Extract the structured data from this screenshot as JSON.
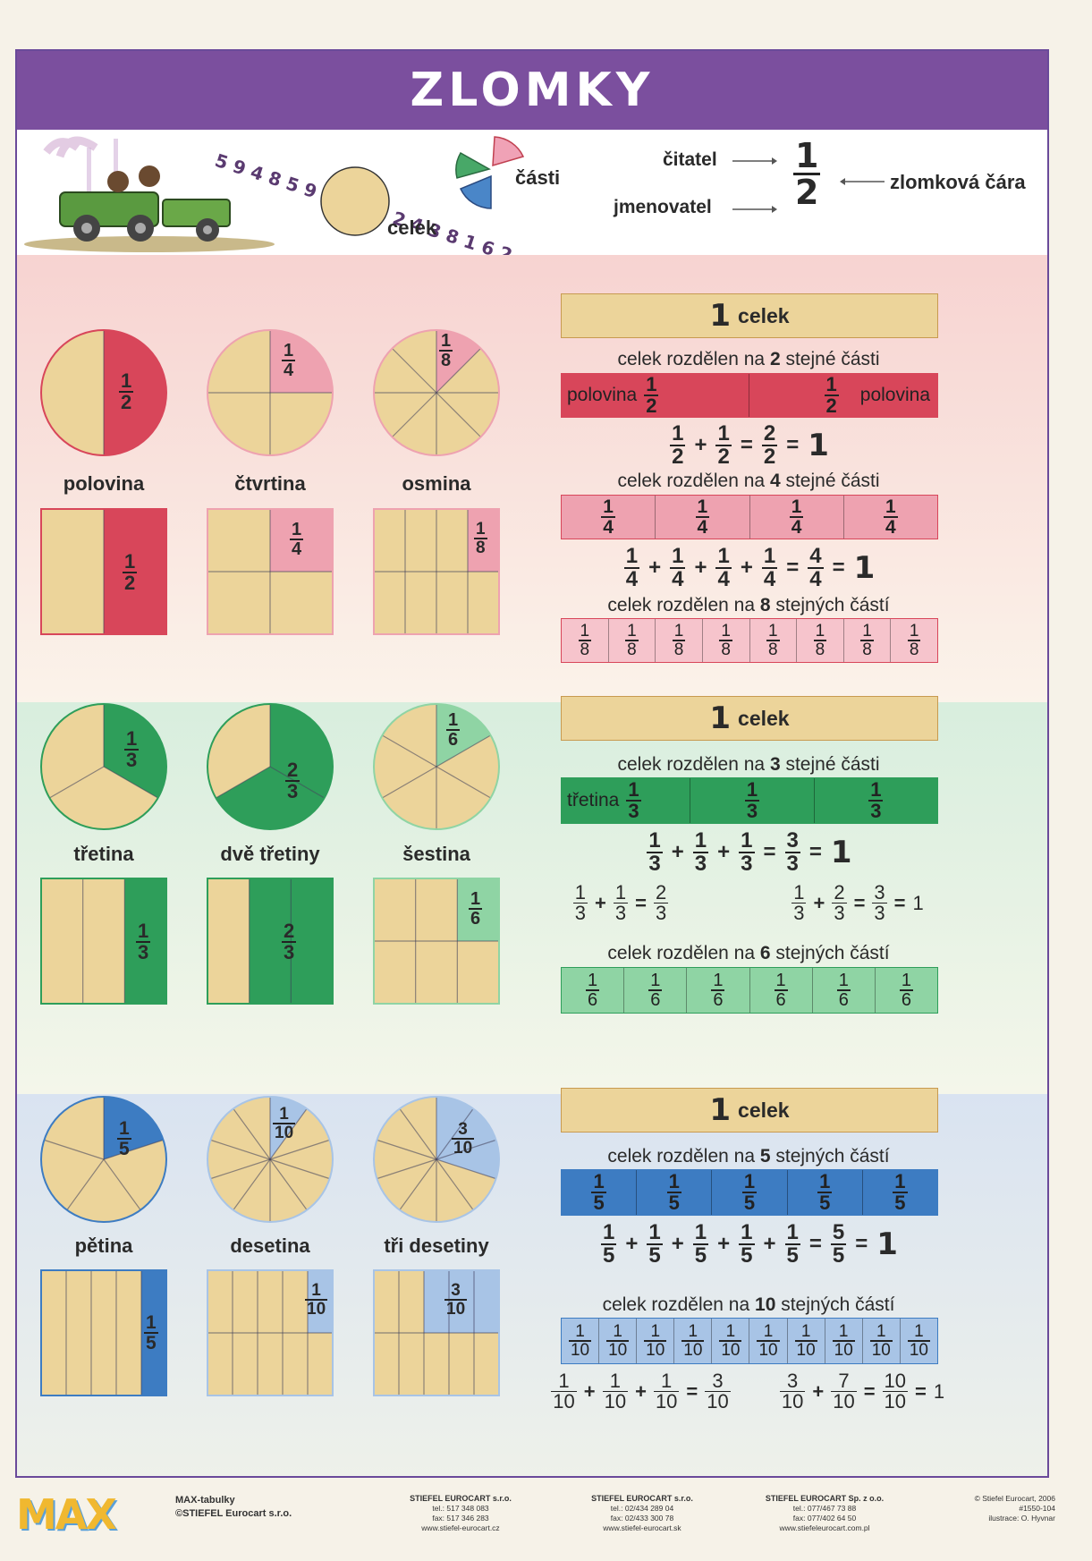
{
  "title": "ZLOMKY",
  "intro": {
    "whole_label": "celek",
    "parts_label": "části",
    "numerator_label": "čitatel",
    "denominator_label": "jmenovatel",
    "fraction_line_label": "zlomková čára",
    "example": {
      "n": "1",
      "d": "2"
    },
    "illustration_numbers": "5 9 4 8 5 9 7 3 5 6 2 4 3 8 1 6 2"
  },
  "sections": [
    {
      "color": "#d8465a",
      "light": "#eea2b0",
      "shapes": [
        {
          "label": "polovina",
          "n": "1",
          "d": "2"
        },
        {
          "label": "čtvrtina",
          "n": "1",
          "d": "4"
        },
        {
          "label": "osmina",
          "n": "1",
          "d": "8"
        }
      ],
      "whole": {
        "num": "1",
        "word": "celek"
      },
      "heading1": {
        "pre": "celek rozdělen na ",
        "num": "2",
        "post": " stejné části"
      },
      "bar1": {
        "word_left": "polovina",
        "word_right": "polovina",
        "n": "1",
        "d": "2",
        "cells": 2
      },
      "eq1": {
        "terms": 2,
        "n": "1",
        "d": "2",
        "rn": "2",
        "rd": "2",
        "one": "1"
      },
      "heading2": {
        "pre": "celek rozdělen na ",
        "num": "4",
        "post": " stejné části"
      },
      "bar2": {
        "n": "1",
        "d": "4",
        "cells": 4
      },
      "eq2": {
        "terms": 4,
        "n": "1",
        "d": "4",
        "rn": "4",
        "rd": "4",
        "one": "1"
      },
      "heading3": {
        "pre": "celek rozdělen na ",
        "num": "8",
        "post": " stejných částí"
      },
      "bar3": {
        "n": "1",
        "d": "8",
        "cells": 8
      }
    },
    {
      "color": "#2e9e5a",
      "light": "#8fd4a4",
      "shapes": [
        {
          "label": "třetina",
          "n": "1",
          "d": "3"
        },
        {
          "label": "dvě třetiny",
          "n": "2",
          "d": "3"
        },
        {
          "label": "šestina",
          "n": "1",
          "d": "6"
        }
      ],
      "whole": {
        "num": "1",
        "word": "celek"
      },
      "heading1": {
        "pre": "celek rozdělen na ",
        "num": "3",
        "post": " stejné části"
      },
      "bar1": {
        "word_left": "třetina",
        "n": "1",
        "d": "3",
        "cells": 3
      },
      "eq1": {
        "terms": 3,
        "n": "1",
        "d": "3",
        "rn": "3",
        "rd": "3",
        "one": "1"
      },
      "extra_left": {
        "a": [
          "1",
          "3"
        ],
        "b": [
          "1",
          "3"
        ],
        "r": [
          "2",
          "3"
        ]
      },
      "extra_right": {
        "a": [
          "1",
          "3"
        ],
        "b": [
          "2",
          "3"
        ],
        "r": [
          "3",
          "3"
        ],
        "one": "1"
      },
      "heading3": {
        "pre": "celek rozdělen na ",
        "num": "6",
        "post": " stejných částí"
      },
      "bar3": {
        "n": "1",
        "d": "6",
        "cells": 6
      }
    },
    {
      "color": "#3d7cc2",
      "light": "#a8c4e6",
      "shapes": [
        {
          "label": "pětina",
          "n": "1",
          "d": "5"
        },
        {
          "label": "desetina",
          "n": "1",
          "d": "10"
        },
        {
          "label": "tři desetiny",
          "n": "3",
          "d": "10"
        }
      ],
      "whole": {
        "num": "1",
        "word": "celek"
      },
      "heading1": {
        "pre": "celek rozdělen na ",
        "num": "5",
        "post": " stejných částí"
      },
      "bar1": {
        "n": "1",
        "d": "5",
        "cells": 5
      },
      "eq1": {
        "terms": 5,
        "n": "1",
        "d": "5",
        "rn": "5",
        "rd": "5",
        "one": "1"
      },
      "heading3": {
        "pre": "celek rozdělen na ",
        "num": "10",
        "post": " stejných částí"
      },
      "bar3": {
        "n": "1",
        "d": "10",
        "cells": 10
      },
      "extra_left": {
        "a": [
          "1",
          "10"
        ],
        "b": [
          "1",
          "10"
        ],
        "c": [
          "1",
          "10"
        ],
        "r": [
          "3",
          "10"
        ]
      },
      "extra_right": {
        "a": [
          "3",
          "10"
        ],
        "b": [
          "7",
          "10"
        ],
        "r": [
          "10",
          "10"
        ],
        "one": "1"
      }
    }
  ],
  "footer": {
    "brand": "MAX",
    "brand_line1": "MAX-tabulky",
    "brand_line2": "©STIEFEL Eurocart s.r.o.",
    "cz": {
      "name": "STIEFEL EUROCART s.r.o.",
      "tel": "tel.: 517 348 083",
      "fax": "fax: 517 346 283",
      "web": "www.stiefel-eurocart.cz"
    },
    "sk": {
      "name": "STIEFEL EUROCART s.r.o.",
      "tel": "tel.: 02/434 289 04",
      "fax": "fax: 02/433 300 78",
      "web": "www.stiefel-eurocart.sk"
    },
    "pl": {
      "name": "STIEFEL EUROCART Sp. z o.o.",
      "tel": "tel.: 077/467 73 88",
      "fax": "fax: 077/402 64 50",
      "web": "www.stiefeleurocart.com.pl"
    },
    "copy": "© Stiefel Eurocart, 2006",
    "code": "#1550-104",
    "illus": "ilustrace: O. Hyvnar"
  }
}
